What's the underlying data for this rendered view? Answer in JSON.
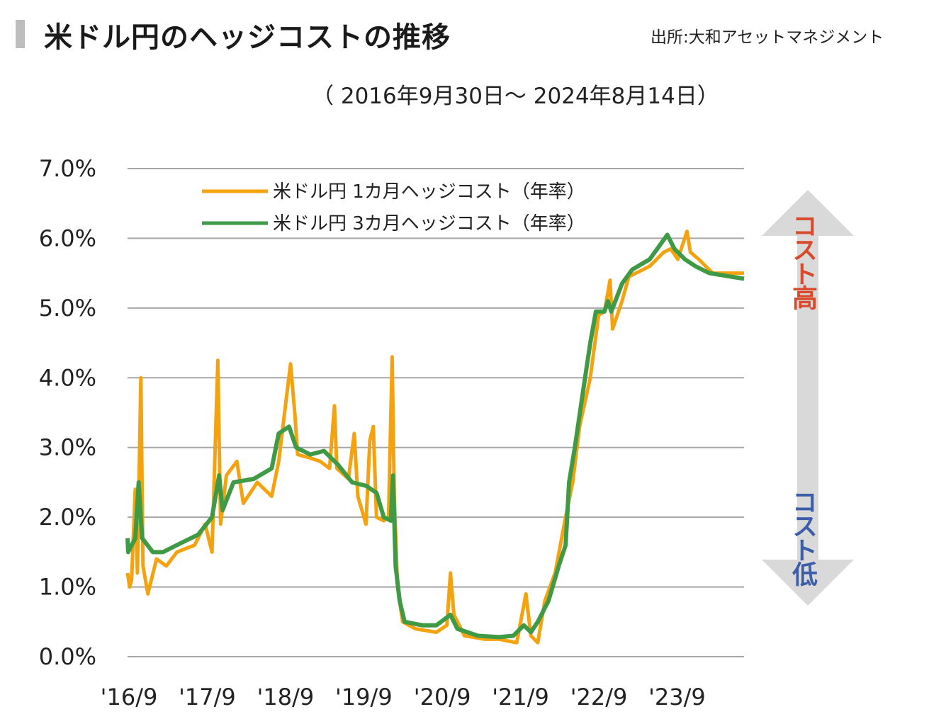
{
  "header": {
    "title": "米ドル円のヘッジコストの推移",
    "source": "出所:大和アセットマネジメント",
    "period": "（ 2016年9月30日～ 2024年8月14日）"
  },
  "annotations": {
    "high": "コスト高",
    "low": "コスト低",
    "high_color": "#d84a2b",
    "low_color": "#3c5da8",
    "arrow_color": "#d9d9d9"
  },
  "chart_data": {
    "type": "line",
    "title": "米ドル円のヘッジコストの推移",
    "subtitle": "（ 2016年9月30日～ 2024年8月14日）",
    "xlabel": "",
    "ylabel": "",
    "xlim": [
      "2016-09-30",
      "2024-08-14"
    ],
    "ylim": [
      0,
      7
    ],
    "grid": true,
    "legend": "top-left",
    "y_ticks": [
      0,
      1,
      2,
      3,
      4,
      5,
      6,
      7
    ],
    "y_tick_labels": [
      "0.0%",
      "1.0%",
      "2.0%",
      "3.0%",
      "4.0%",
      "5.0%",
      "6.0%",
      "7.0%"
    ],
    "x_ticks": [
      "2016-09-30",
      "2017-09-30",
      "2018-09-30",
      "2019-09-30",
      "2020-09-30",
      "2021-09-30",
      "2022-09-30",
      "2023-09-30"
    ],
    "x_tick_labels": [
      "'16/9",
      "'17/9",
      "'18/9",
      "'19/9",
      "'20/9",
      "'21/9",
      "'22/9",
      "'23/9"
    ],
    "series": [
      {
        "name": "米ドル円 1カ月ヘッジコスト（年率）",
        "color": "#f5a20f",
        "x": [
          "2016-09-30",
          "2016-10-10",
          "2016-10-19",
          "2016-11-05",
          "2016-11-15",
          "2016-12-01",
          "2016-12-11",
          "2017-01-03",
          "2017-02-12",
          "2017-03-30",
          "2017-05-18",
          "2017-08-09",
          "2017-09-27",
          "2017-10-29",
          "2017-11-25",
          "2017-12-08",
          "2018-01-04",
          "2018-02-22",
          "2018-03-24",
          "2018-05-28",
          "2018-08-03",
          "2018-09-05",
          "2018-10-30",
          "2018-11-19",
          "2018-12-02",
          "2019-01-30",
          "2019-03-18",
          "2019-04-30",
          "2019-05-23",
          "2019-06-03",
          "2019-07-27",
          "2019-08-23",
          "2019-09-09",
          "2019-10-17",
          "2019-11-04",
          "2019-11-20",
          "2019-12-05",
          "2020-01-08",
          "2020-01-30",
          "2020-02-16",
          "2020-02-26",
          "2020-03-12",
          "2020-04-05",
          "2020-06-03",
          "2020-09-09",
          "2020-10-28",
          "2020-11-14",
          "2020-11-30",
          "2021-01-18",
          "2021-04-24",
          "2021-06-29",
          "2021-09-19",
          "2021-11-01",
          "2021-11-24",
          "2021-12-26",
          "2022-01-28",
          "2022-03-17",
          "2022-05-05",
          "2022-06-07",
          "2022-07-09",
          "2022-08-28",
          "2022-10-06",
          "2022-11-02",
          "2022-11-28",
          "2022-12-10",
          "2023-01-23",
          "2023-02-24",
          "2023-06-01",
          "2023-08-05",
          "2023-09-07",
          "2023-10-10",
          "2023-11-22",
          "2023-12-08",
          "2024-01-16",
          "2024-03-21",
          "2024-08-14"
        ],
        "y": [
          1.2,
          1.0,
          1.1,
          2.4,
          1.2,
          4.0,
          1.3,
          0.9,
          1.4,
          1.3,
          1.5,
          1.6,
          1.9,
          1.5,
          4.25,
          1.9,
          2.6,
          2.8,
          2.2,
          2.5,
          2.3,
          2.8,
          4.2,
          3.5,
          2.9,
          2.85,
          2.8,
          2.7,
          3.6,
          2.7,
          2.55,
          3.2,
          2.3,
          1.9,
          3.1,
          3.3,
          2.0,
          1.95,
          2.0,
          4.3,
          2.3,
          1.0,
          0.5,
          0.4,
          0.35,
          0.45,
          1.2,
          0.6,
          0.3,
          0.25,
          0.25,
          0.2,
          0.9,
          0.3,
          0.2,
          0.8,
          1.2,
          2.0,
          2.5,
          3.3,
          4.0,
          4.9,
          4.95,
          5.4,
          4.7,
          5.1,
          5.45,
          5.6,
          5.8,
          5.85,
          5.7,
          6.1,
          5.8,
          5.7,
          5.5,
          5.5
        ]
      },
      {
        "name": "米ドル円 3カ月ヘッジコスト（年率）",
        "color": "#3f9a45",
        "x": [
          "2016-09-30",
          "2016-10-03",
          "2016-11-05",
          "2016-11-21",
          "2016-12-07",
          "2017-01-26",
          "2017-03-14",
          "2017-05-18",
          "2017-08-25",
          "2017-10-29",
          "2017-12-01",
          "2017-12-17",
          "2018-02-06",
          "2018-05-12",
          "2018-08-03",
          "2018-09-05",
          "2018-10-23",
          "2018-11-25",
          "2019-01-30",
          "2019-04-04",
          "2019-06-09",
          "2019-08-13",
          "2019-10-17",
          "2019-12-05",
          "2020-01-08",
          "2020-02-10",
          "2020-02-20",
          "2020-03-03",
          "2020-03-22",
          "2020-04-14",
          "2020-07-05",
          "2020-09-09",
          "2020-11-14",
          "2020-12-16",
          "2021-03-22",
          "2021-06-29",
          "2021-09-03",
          "2021-10-22",
          "2021-11-24",
          "2021-12-26",
          "2022-02-14",
          "2022-04-03",
          "2022-05-05",
          "2022-05-21",
          "2022-06-17",
          "2022-07-25",
          "2022-08-28",
          "2022-09-23",
          "2022-11-02",
          "2022-11-18",
          "2022-12-04",
          "2023-01-23",
          "2023-03-11",
          "2023-06-01",
          "2023-08-22",
          "2023-09-24",
          "2023-11-12",
          "2023-12-31",
          "2024-03-05",
          "2024-08-14"
        ],
        "y": [
          1.7,
          1.5,
          1.7,
          2.5,
          1.7,
          1.5,
          1.5,
          1.6,
          1.75,
          2.0,
          2.6,
          2.1,
          2.5,
          2.55,
          2.7,
          3.2,
          3.3,
          3.0,
          2.9,
          2.95,
          2.75,
          2.5,
          2.45,
          2.35,
          2.0,
          1.95,
          2.6,
          1.3,
          0.8,
          0.5,
          0.45,
          0.45,
          0.6,
          0.4,
          0.3,
          0.28,
          0.3,
          0.45,
          0.35,
          0.5,
          0.8,
          1.3,
          1.6,
          2.5,
          3.0,
          3.8,
          4.5,
          4.95,
          4.95,
          5.1,
          4.95,
          5.35,
          5.55,
          5.7,
          6.05,
          5.85,
          5.7,
          5.6,
          5.5,
          5.42
        ]
      }
    ]
  }
}
